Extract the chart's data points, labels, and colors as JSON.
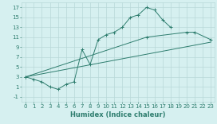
{
  "line1_x": [
    0,
    1,
    2,
    3,
    4,
    5,
    6,
    7,
    8,
    9,
    10,
    11,
    12,
    13,
    14,
    15,
    16,
    17,
    18
  ],
  "line1_y": [
    3,
    2.5,
    2,
    1,
    0.5,
    1.5,
    2,
    8.5,
    5.5,
    10.5,
    11.5,
    12,
    13,
    15,
    15.5,
    17,
    16.5,
    14.5,
    13
  ],
  "line2_x": [
    0,
    15,
    20,
    21,
    23
  ],
  "line2_y": [
    3,
    11,
    12,
    12,
    10.5
  ],
  "line3_x": [
    0,
    23
  ],
  "line3_y": [
    3,
    10
  ],
  "line_color": "#2e7d6e",
  "bg_color": "#d6f0f0",
  "grid_color": "#b8d8d8",
  "xlabel": "Humidex (Indice chaleur)",
  "xlim": [
    -0.5,
    23.5
  ],
  "ylim": [
    -2,
    18
  ],
  "xticks": [
    0,
    1,
    2,
    3,
    4,
    5,
    6,
    7,
    8,
    9,
    10,
    11,
    12,
    13,
    14,
    15,
    16,
    17,
    18,
    19,
    20,
    21,
    22,
    23
  ],
  "yticks": [
    -1,
    1,
    3,
    5,
    7,
    9,
    11,
    13,
    15,
    17
  ],
  "label_fontsize": 6,
  "tick_fontsize": 5
}
